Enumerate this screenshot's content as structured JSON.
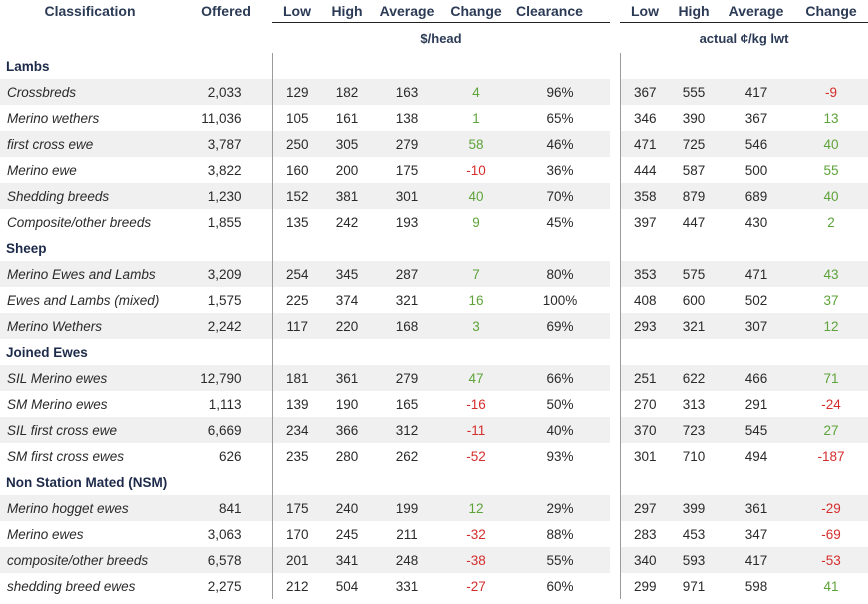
{
  "headers": {
    "classification": "Classification",
    "offered": "Offered",
    "low": "Low",
    "high": "High",
    "average": "Average",
    "change": "Change",
    "clearance": "Clearance",
    "low2": "Low",
    "high2": "High",
    "average2": "Average",
    "change2": "Change",
    "unit_head": "$/head",
    "unit_kg": "actual ¢/kg lwt"
  },
  "groups": [
    {
      "title": "Lambs",
      "rows": [
        {
          "name": "Crossbreds",
          "offered": "2,033",
          "low": "129",
          "high": "182",
          "avg": "163",
          "change": "4",
          "clearance": "96%",
          "low2": "367",
          "high2": "555",
          "avg2": "417",
          "change2": "-9"
        },
        {
          "name": "Merino wethers",
          "offered": "11,036",
          "low": "105",
          "high": "161",
          "avg": "138",
          "change": "1",
          "clearance": "65%",
          "low2": "346",
          "high2": "390",
          "avg2": "367",
          "change2": "13"
        },
        {
          "name": "first cross ewe",
          "offered": "3,787",
          "low": "250",
          "high": "305",
          "avg": "279",
          "change": "58",
          "clearance": "46%",
          "low2": "471",
          "high2": "725",
          "avg2": "546",
          "change2": "40"
        },
        {
          "name": "Merino ewe",
          "offered": "3,822",
          "low": "160",
          "high": "200",
          "avg": "175",
          "change": "-10",
          "clearance": "36%",
          "low2": "444",
          "high2": "587",
          "avg2": "500",
          "change2": "55"
        },
        {
          "name": "Shedding breeds",
          "offered": "1,230",
          "low": "152",
          "high": "381",
          "avg": "301",
          "change": "40",
          "clearance": "70%",
          "low2": "358",
          "high2": "879",
          "avg2": "689",
          "change2": "40"
        },
        {
          "name": "Composite/other breeds",
          "offered": "1,855",
          "low": "135",
          "high": "242",
          "avg": "193",
          "change": "9",
          "clearance": "45%",
          "low2": "397",
          "high2": "447",
          "avg2": "430",
          "change2": "2"
        }
      ]
    },
    {
      "title": "Sheep",
      "rows": [
        {
          "name": "Merino Ewes and Lambs",
          "offered": "3,209",
          "low": "254",
          "high": "345",
          "avg": "287",
          "change": "7",
          "clearance": "80%",
          "low2": "353",
          "high2": "575",
          "avg2": "471",
          "change2": "43"
        },
        {
          "name": "Ewes and Lambs (mixed)",
          "offered": "1,575",
          "low": "225",
          "high": "374",
          "avg": "321",
          "change": "16",
          "clearance": "100%",
          "low2": "408",
          "high2": "600",
          "avg2": "502",
          "change2": "37"
        },
        {
          "name": "Merino Wethers",
          "offered": "2,242",
          "low": "117",
          "high": "220",
          "avg": "168",
          "change": "3",
          "clearance": "69%",
          "low2": "293",
          "high2": "321",
          "avg2": "307",
          "change2": "12"
        }
      ]
    },
    {
      "title": "Joined Ewes",
      "rows": [
        {
          "name": "SIL Merino ewes",
          "offered": "12,790",
          "low": "181",
          "high": "361",
          "avg": "279",
          "change": "47",
          "clearance": "66%",
          "low2": "251",
          "high2": "622",
          "avg2": "466",
          "change2": "71"
        },
        {
          "name": "SM Merino ewes",
          "offered": "1,113",
          "low": "139",
          "high": "190",
          "avg": "165",
          "change": "-16",
          "clearance": "50%",
          "low2": "270",
          "high2": "313",
          "avg2": "291",
          "change2": "-24"
        },
        {
          "name": "SIL first cross ewe",
          "offered": "6,669",
          "low": "234",
          "high": "366",
          "avg": "312",
          "change": "-11",
          "clearance": "40%",
          "low2": "370",
          "high2": "723",
          "avg2": "545",
          "change2": "27"
        },
        {
          "name": "SM first cross ewes",
          "offered": "626",
          "low": "235",
          "high": "280",
          "avg": "262",
          "change": "-52",
          "clearance": "93%",
          "low2": "301",
          "high2": "710",
          "avg2": "494",
          "change2": "-187"
        }
      ]
    },
    {
      "title": "Non Station Mated (NSM)",
      "rows": [
        {
          "name": "Merino hogget ewes",
          "offered": "841",
          "low": "175",
          "high": "240",
          "avg": "199",
          "change": "12",
          "clearance": "29%",
          "low2": "297",
          "high2": "399",
          "avg2": "361",
          "change2": "-29"
        },
        {
          "name": "Merino ewes",
          "offered": "3,063",
          "low": "170",
          "high": "245",
          "avg": "211",
          "change": "-32",
          "clearance": "88%",
          "low2": "283",
          "high2": "453",
          "avg2": "347",
          "change2": "-69"
        },
        {
          "name": "composite/other breeds",
          "offered": "6,578",
          "low": "201",
          "high": "341",
          "avg": "248",
          "change": "-38",
          "clearance": "55%",
          "low2": "340",
          "high2": "593",
          "avg2": "417",
          "change2": "-53"
        },
        {
          "name": "shedding breed ewes",
          "offered": "2,275",
          "low": "212",
          "high": "504",
          "avg": "331",
          "change": "-27",
          "clearance": "60%",
          "low2": "299",
          "high2": "971",
          "avg2": "598",
          "change2": "41"
        }
      ]
    }
  ],
  "colors": {
    "header_text": "#2b3a55",
    "positive": "#5ea33a",
    "negative": "#d42d2d",
    "row_stripe": "#f0f0f0"
  }
}
